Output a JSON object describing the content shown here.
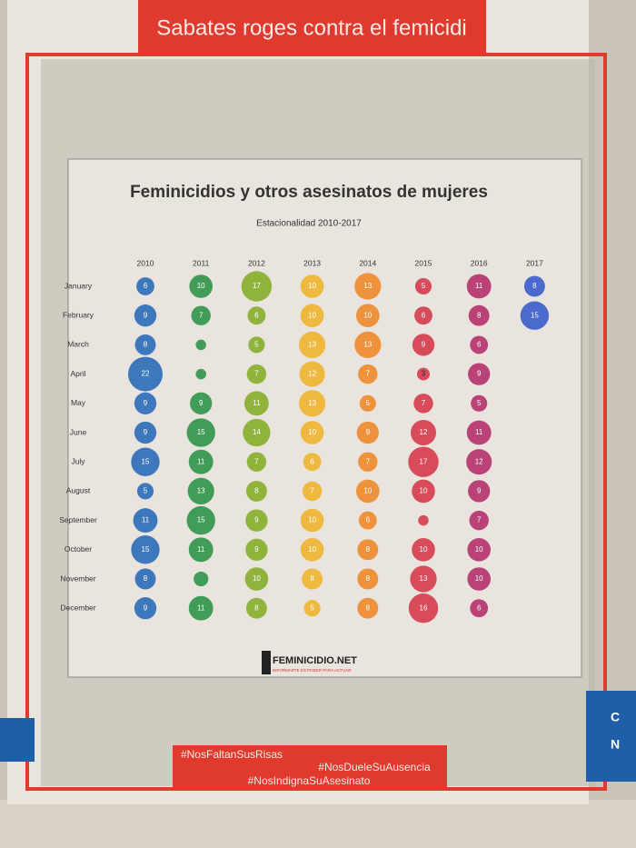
{
  "poster": {
    "banner": "Sabates roges contra el femicidi",
    "logo": "FEMINICIDIO.NET",
    "logo_tagline": "INFORMARTE ES PODER PARA ACTUAR",
    "hashtags": [
      "#NosFaltanSusRisas",
      "#NosDueleSuAusencia",
      "#NosIndignaSuAsesinato"
    ],
    "side_panel": [
      "C",
      "N"
    ]
  },
  "chart_data": {
    "type": "bubble",
    "title": "Feminicidios y otros asesinatos de mujeres",
    "subtitle": "Estacionalidad 2010-2017",
    "categories": [
      "January",
      "February",
      "March",
      "April",
      "May",
      "June",
      "July",
      "August",
      "September",
      "October",
      "November",
      "December"
    ],
    "series": [
      {
        "name": "2010",
        "color": "#2a6cb8",
        "values": [
          6,
          9,
          8,
          22,
          9,
          9,
          15,
          5,
          11,
          15,
          8,
          9
        ]
      },
      {
        "name": "2011",
        "color": "#2e9448",
        "values": [
          10,
          7,
          2,
          2,
          9,
          15,
          11,
          13,
          15,
          11,
          4,
          11
        ],
        "value_labels": [
          "10",
          "7",
          null,
          null,
          "9",
          "15",
          "11",
          "13",
          "15",
          "11",
          null,
          "11"
        ]
      },
      {
        "name": "2012",
        "color": "#86ad2a",
        "values": [
          17,
          6,
          5,
          7,
          11,
          14,
          7,
          8,
          9,
          9,
          10,
          8
        ]
      },
      {
        "name": "2013",
        "color": "#efb22c",
        "values": [
          10,
          10,
          13,
          12,
          13,
          10,
          6,
          7,
          10,
          10,
          8,
          5
        ]
      },
      {
        "name": "2014",
        "color": "#ee8a2a",
        "values": [
          13,
          10,
          13,
          7,
          5,
          9,
          7,
          10,
          6,
          8,
          8,
          8
        ]
      },
      {
        "name": "2015",
        "color": "#d63a4c",
        "values": [
          5,
          6,
          9,
          3,
          7,
          12,
          17,
          10,
          2,
          10,
          13,
          16
        ],
        "value_labels": [
          "5",
          "6",
          "9",
          "3",
          "7",
          "12",
          "17",
          "10",
          null,
          "10",
          "13",
          "16"
        ]
      },
      {
        "name": "2016",
        "color": "#b5306c",
        "values": [
          11,
          8,
          6,
          9,
          5,
          11,
          12,
          9,
          7,
          10,
          10,
          6
        ]
      },
      {
        "name": "2017",
        "color": "#3a5ccc",
        "values": [
          8,
          15,
          null,
          null,
          null,
          null,
          null,
          null,
          null,
          null,
          null,
          null
        ]
      }
    ]
  }
}
